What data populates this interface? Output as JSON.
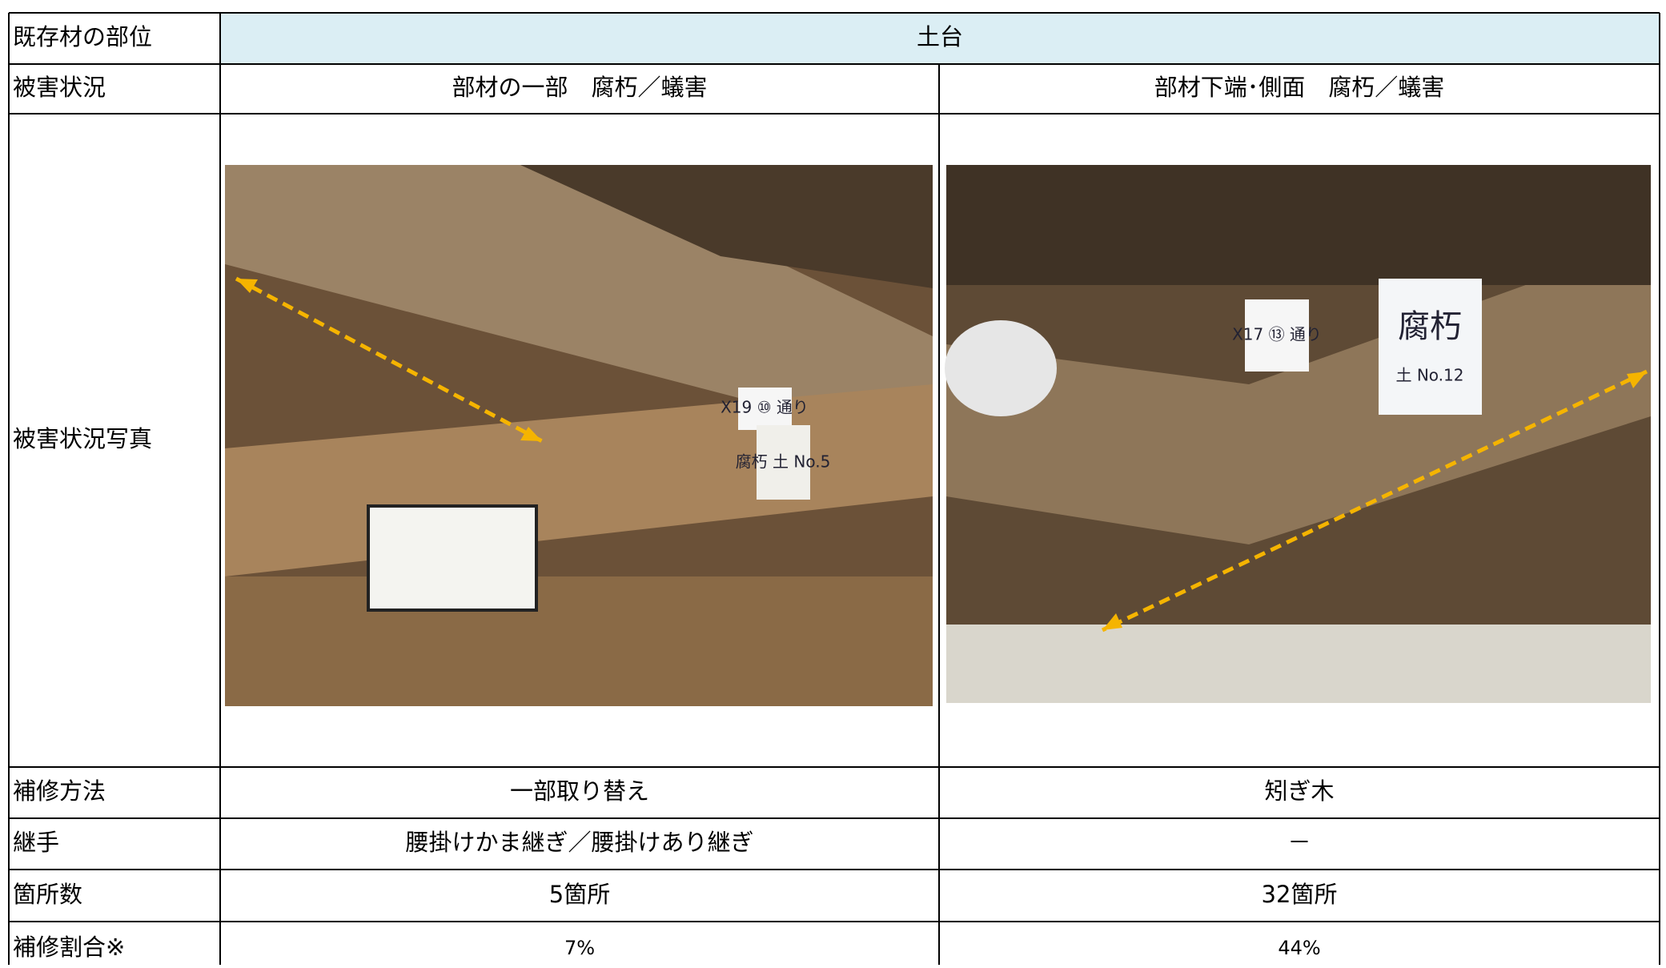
{
  "table": {
    "header": {
      "label": "既存材の部位",
      "value": "土台"
    },
    "damage": {
      "label": "被害状況",
      "cells": [
        "部材の一部　腐朽／蟻害",
        "部材下端･側面　腐朽／蟻害"
      ]
    },
    "photos": {
      "label": "被害状況写真",
      "items": [
        {
          "signs": [
            "X19 ⑩ 通り",
            "腐朽 土 No.5"
          ]
        },
        {
          "signs": [
            "X17 ⑬ 通り",
            "腐朽",
            "土 No.12"
          ]
        }
      ]
    },
    "rows": [
      {
        "label": "補修方法",
        "cells": [
          "一部取り替え",
          "矧ぎ木"
        ]
      },
      {
        "label": "継手",
        "cells": [
          "腰掛けかま継ぎ／腰掛けあり継ぎ",
          "－"
        ]
      },
      {
        "label": "箇所数",
        "cells": [
          "5箇所",
          "32箇所"
        ]
      },
      {
        "label": "補修割合※",
        "cells": [
          "7%",
          "44%"
        ]
      }
    ]
  }
}
